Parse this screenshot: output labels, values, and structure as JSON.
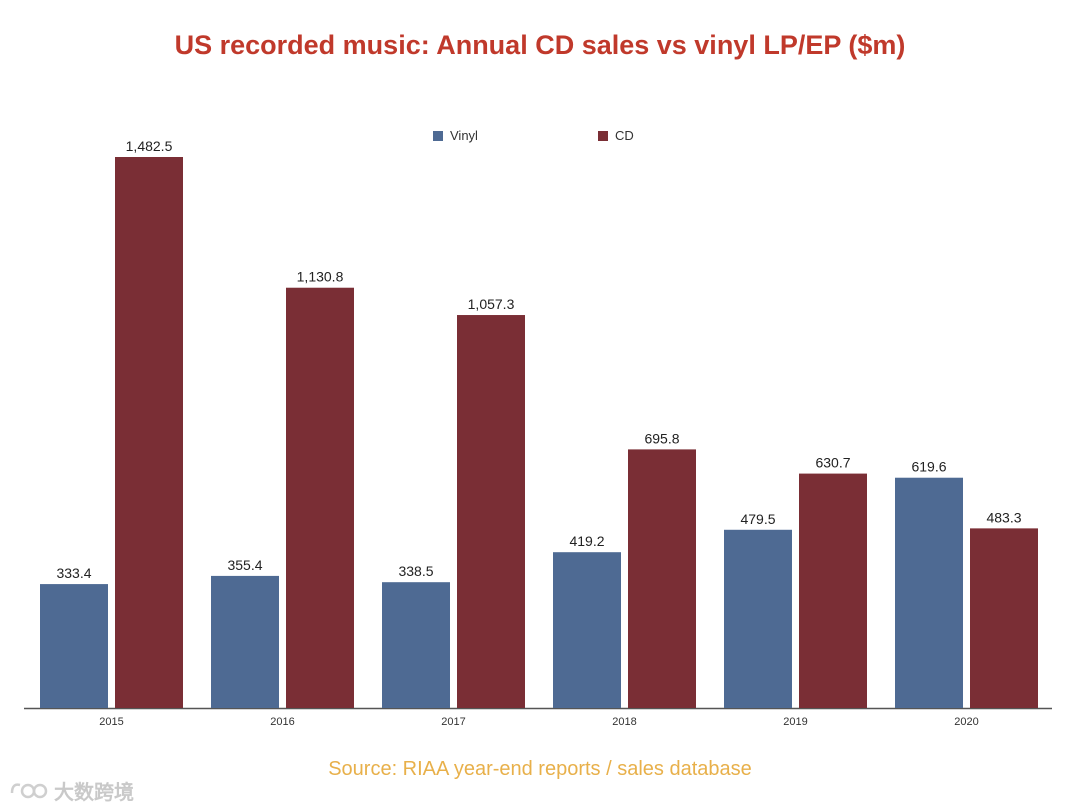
{
  "chart_data": {
    "type": "bar",
    "title": "US recorded music: Annual CD sales vs vinyl LP/EP ($m)",
    "categories": [
      "2015",
      "2016",
      "2017",
      "2018",
      "2019",
      "2020"
    ],
    "series": [
      {
        "name": "Vinyl",
        "color": "#4e6a93",
        "values": [
          333.4,
          355.4,
          338.5,
          419.2,
          479.5,
          619.6
        ],
        "labels": [
          "333.4",
          "355.4",
          "338.5",
          "419.2",
          "479.5",
          "619.6"
        ]
      },
      {
        "name": "CD",
        "color": "#7a2e35",
        "values": [
          1482.5,
          1130.8,
          1057.3,
          695.8,
          630.7,
          483.3
        ],
        "labels": [
          "1,482.5",
          "1,130.8",
          "1,057.3",
          "695.8",
          "630.7",
          "483.3"
        ]
      }
    ],
    "ylim": [
      0,
      1482.5
    ],
    "xlabel": "",
    "ylabel": "",
    "grid": false,
    "legend_position": "top-center"
  },
  "source": "Source: RIAA year-end reports / sales database",
  "watermark": "大数跨境",
  "colors": {
    "title": "#c0392b",
    "source": "#e8b04a"
  }
}
